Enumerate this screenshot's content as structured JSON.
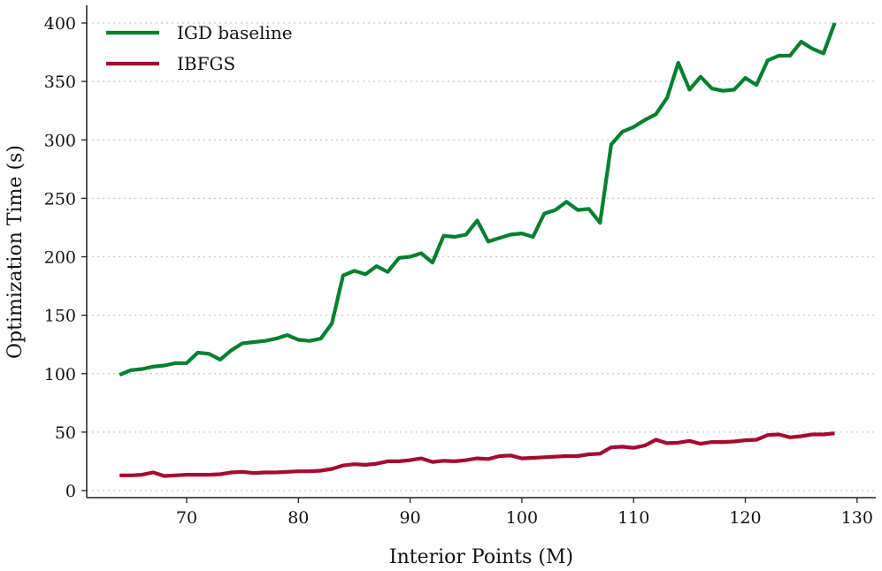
{
  "chart_data": {
    "type": "line",
    "title": "",
    "xlabel": "Interior Points (M)",
    "ylabel": "Optimization Time (s)",
    "xlim": [
      61,
      131
    ],
    "ylim": [
      -6,
      408
    ],
    "xticks": [
      70,
      80,
      90,
      100,
      110,
      120,
      130
    ],
    "yticks": [
      0,
      50,
      100,
      150,
      200,
      250,
      300,
      350,
      400
    ],
    "grid": "horizontal dotted",
    "legend_position": "top-left",
    "x_start": 64,
    "series": [
      {
        "name": "IGD baseline",
        "color": "#00812f",
        "values": [
          99,
          103,
          104,
          106,
          107,
          109,
          109,
          118,
          117,
          112,
          120,
          126,
          127,
          128,
          130,
          133,
          129,
          128,
          130,
          143,
          184,
          188,
          185,
          192,
          187,
          199,
          200,
          203,
          195,
          218,
          217,
          219,
          231,
          213,
          216,
          219,
          220,
          217,
          237,
          240,
          247,
          240,
          241,
          229,
          296,
          307,
          311,
          317,
          322,
          336,
          366,
          343,
          354,
          344,
          342,
          343,
          353,
          347,
          368,
          372,
          372,
          384,
          378,
          374,
          400
        ]
      },
      {
        "name": "IBFGS",
        "color": "#a50a30",
        "values": [
          13,
          13,
          13.5,
          15.5,
          12.5,
          13,
          13.5,
          13.5,
          13.5,
          14,
          15.5,
          16,
          15,
          15.5,
          15.5,
          16,
          16.5,
          16.5,
          17,
          18.5,
          21.5,
          22.5,
          22,
          23,
          25,
          25,
          26,
          27.5,
          24.5,
          25.5,
          25,
          26,
          27.5,
          27,
          29.5,
          30,
          27.5,
          28,
          28.5,
          29,
          29.5,
          29.5,
          31,
          31.5,
          37,
          37.5,
          36.5,
          38.5,
          43.5,
          40.5,
          41,
          42.5,
          40,
          41.5,
          41.5,
          42,
          43,
          43.5,
          47.5,
          48,
          45.5,
          46.5,
          48,
          48,
          49
        ]
      }
    ]
  }
}
